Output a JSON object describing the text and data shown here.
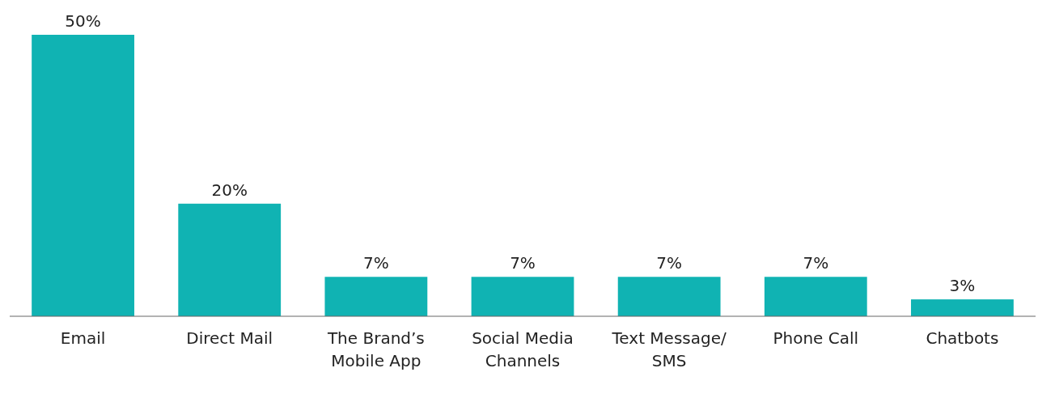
{
  "chart_data": {
    "type": "bar",
    "categories": [
      "Email",
      "Direct Mail",
      "The Brand’s\nMobile App",
      "Social Media\nChannels",
      "Text Message/\nSMS",
      "Phone Call",
      "Chatbots"
    ],
    "values": [
      50,
      20,
      7,
      7,
      7,
      7,
      3
    ],
    "value_labels": [
      "50%",
      "20%",
      "7%",
      "7%",
      "7%",
      "7%",
      "3%"
    ],
    "color": "#10b3b3"
  }
}
